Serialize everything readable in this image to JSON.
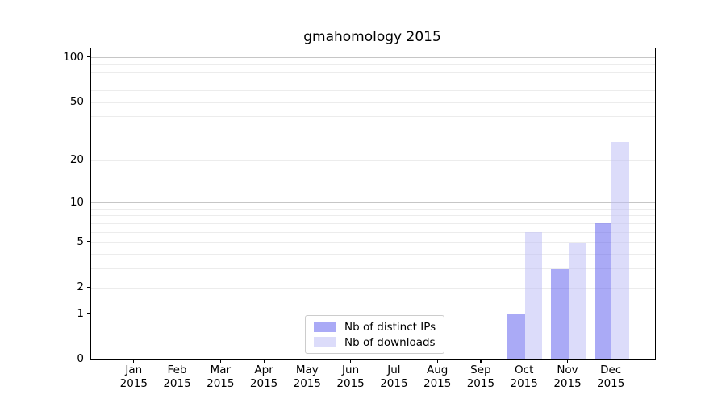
{
  "chart_data": {
    "type": "bar",
    "title": "gmahomology 2015",
    "categories": [
      "Jan",
      "Feb",
      "Mar",
      "Apr",
      "May",
      "Jun",
      "Jul",
      "Aug",
      "Sep",
      "Oct",
      "Nov",
      "Dec"
    ],
    "year": "2015",
    "series": [
      {
        "name": "Nb of distinct IPs",
        "color": "#aaaaf6",
        "fill": "rgba(85,85,238,0.5)",
        "values": [
          0,
          0,
          0,
          0,
          0,
          0,
          0,
          0,
          0,
          1,
          3,
          7
        ]
      },
      {
        "name": "Nb of downloads",
        "color": "#dcdcfa",
        "fill": "rgba(185,185,245,0.5)",
        "values": [
          0,
          0,
          0,
          0,
          0,
          0,
          0,
          0,
          0,
          6,
          5,
          27
        ]
      }
    ],
    "y_ticks": [
      0,
      1,
      2,
      5,
      10,
      20,
      50,
      100
    ],
    "scale": "log1p",
    "ylim": [
      0,
      115
    ],
    "xlabel": "",
    "ylabel": "",
    "grid": {
      "on": true,
      "major_values": [
        1,
        10,
        100
      ],
      "minor_values": [
        2,
        3,
        4,
        5,
        6,
        7,
        8,
        9,
        20,
        30,
        40,
        50,
        60,
        70,
        80,
        90
      ],
      "major_color": "#c6c6c6",
      "minor_color": "#ececec"
    },
    "legend": {
      "position": "lower center"
    },
    "axis_color": "#000000",
    "background": "#ffffff"
  }
}
